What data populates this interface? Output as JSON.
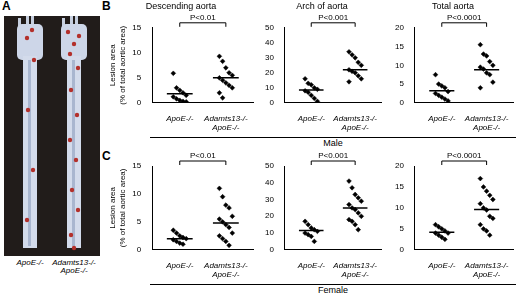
{
  "image_panel": {
    "label": "A",
    "captions": [
      "ApoE-/-",
      "Adamts13-/-\nApoE-/-"
    ]
  },
  "rows": [
    {
      "label": "B",
      "name": "Male"
    },
    {
      "label": "C",
      "name": "Female"
    }
  ],
  "chart_data": [
    {
      "type": "scatter",
      "title": "Descending aorta",
      "y_label": "Lesion area\n(% of total aortic area)",
      "categories": [
        "ApoE-/-",
        "Adamts13-/-\nApoE-/-"
      ],
      "values": [
        [
          5.9,
          3.0,
          2.5,
          2.0,
          1.5,
          1.2,
          0.8,
          0.5,
          0.3,
          0.2
        ],
        [
          9.3,
          8.3,
          7.0,
          6.0,
          5.5,
          5.0,
          4.5,
          4.0,
          3.5,
          3.0,
          2.0,
          1.0
        ]
      ],
      "means": [
        1.8,
        5.0
      ],
      "annotation": "P<0.01",
      "ylim": [
        0,
        15
      ],
      "yticks": [
        0,
        5,
        10,
        15
      ],
      "grid": false,
      "color": "#000000",
      "marker": "diamond"
    },
    {
      "type": "scatter",
      "title": "Arch of aorta",
      "categories": [
        "ApoE-/-",
        "Adamts13-/-\nApoE-/-"
      ],
      "values": [
        [
          16,
          13,
          12,
          10,
          9,
          8,
          7,
          5,
          3,
          1
        ],
        [
          34,
          32,
          30,
          27,
          25,
          22,
          21,
          20,
          18,
          16,
          14
        ]
      ],
      "means": [
        8.5,
        22
      ],
      "annotation": "P<0.001",
      "ylim": [
        0,
        50
      ],
      "yticks": [
        0,
        10,
        20,
        30,
        40,
        50
      ],
      "grid": false,
      "color": "#000000",
      "marker": "diamond"
    },
    {
      "type": "scatter",
      "title": "Total aorta",
      "categories": [
        "ApoE-/-",
        "Adamts13-/-\nApoE-/-"
      ],
      "values": [
        [
          7.5,
          5.0,
          4.5,
          4.0,
          3.0,
          2.5,
          2.0,
          1.5,
          1.0,
          0.5
        ],
        [
          15.5,
          13.0,
          12.5,
          11.0,
          10.0,
          9.5,
          9.0,
          8.0,
          7.5,
          5.5,
          4.0
        ]
      ],
      "means": [
        3.2,
        8.8
      ],
      "annotation": "P<0.0001",
      "ylim": [
        0,
        20
      ],
      "yticks": [
        0,
        5,
        10,
        15,
        20
      ],
      "grid": false,
      "color": "#000000",
      "marker": "diamond"
    },
    {
      "type": "scatter",
      "y_label": "Lesion area\n(% of total aortic area)",
      "categories": [
        "ApoE-/-",
        "Adamts13-/-\nApoE-/-"
      ],
      "values": [
        [
          3.5,
          3.0,
          2.5,
          2.2,
          2.0,
          1.8,
          1.5,
          1.2,
          1.0
        ],
        [
          11.0,
          9.5,
          8.0,
          7.5,
          6.0,
          5.5,
          5.0,
          4.5,
          4.0,
          3.0,
          2.5,
          2.0,
          1.5,
          0.8
        ]
      ],
      "means": [
        2.0,
        4.8
      ],
      "annotation": "P<0.01",
      "ylim": [
        0,
        15
      ],
      "yticks": [
        0,
        5,
        10,
        15
      ],
      "grid": false,
      "color": "#000000",
      "marker": "diamond"
    },
    {
      "type": "scatter",
      "categories": [
        "ApoE-/-",
        "Adamts13-/-\nApoE-/-"
      ],
      "values": [
        [
          17,
          15,
          13,
          12,
          11,
          10,
          9,
          8,
          5
        ],
        [
          41,
          37,
          33,
          31,
          29,
          27,
          25,
          24,
          22,
          20,
          18,
          17,
          15,
          12
        ]
      ],
      "means": [
        11.5,
        25
      ],
      "annotation": "P<0.001",
      "ylim": [
        0,
        50
      ],
      "yticks": [
        0,
        10,
        20,
        30,
        40,
        50
      ],
      "grid": false,
      "color": "#000000",
      "marker": "diamond"
    },
    {
      "type": "scatter",
      "categories": [
        "ApoE-/-",
        "Adamts13-/-\nApoE-/-"
      ],
      "values": [
        [
          6.0,
          5.5,
          5.0,
          4.5,
          4.0,
          4.0,
          3.5,
          3.0,
          2.5
        ],
        [
          17.0,
          15.0,
          14.0,
          13.0,
          12.0,
          11.0,
          10.0,
          9.5,
          8.0,
          7.5,
          6.0,
          5.0,
          4.5,
          3.5
        ]
      ],
      "means": [
        4.2,
        9.6
      ],
      "annotation": "P<0.0001",
      "ylim": [
        0,
        20
      ],
      "yticks": [
        0,
        5,
        10,
        15,
        20
      ],
      "grid": false,
      "color": "#000000",
      "marker": "diamond"
    }
  ]
}
